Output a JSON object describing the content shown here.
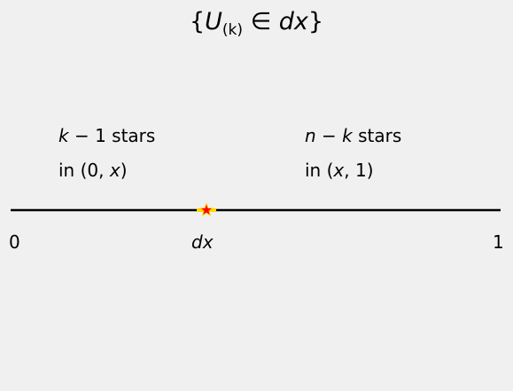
{
  "title": {
    "open": "{",
    "var": "U",
    "sub": "(k)",
    "rel": " ∈ ",
    "set": "dx",
    "close": "}"
  },
  "left_region": {
    "line1_var": "k",
    "line1_rest": " − 1 stars",
    "line2_pre": "in (0, ",
    "line2_var": "x",
    "line2_post": ")"
  },
  "right_region": {
    "line1_var1": "n",
    "line1_mid": " − ",
    "line1_var2": "k",
    "line1_rest": " stars",
    "line2_pre": "in (",
    "line2_var": "x",
    "line2_post": ", 1)"
  },
  "axis": {
    "label_start": "0",
    "label_mid": "dx",
    "label_end": "1"
  },
  "colors": {
    "background": "#f0f0f0",
    "line": "#000000",
    "star_fill": "#ff0000",
    "star_edge": "#ffd700"
  },
  "marker": {
    "icon": "star-icon",
    "fraction_along_axis": 0.4
  }
}
